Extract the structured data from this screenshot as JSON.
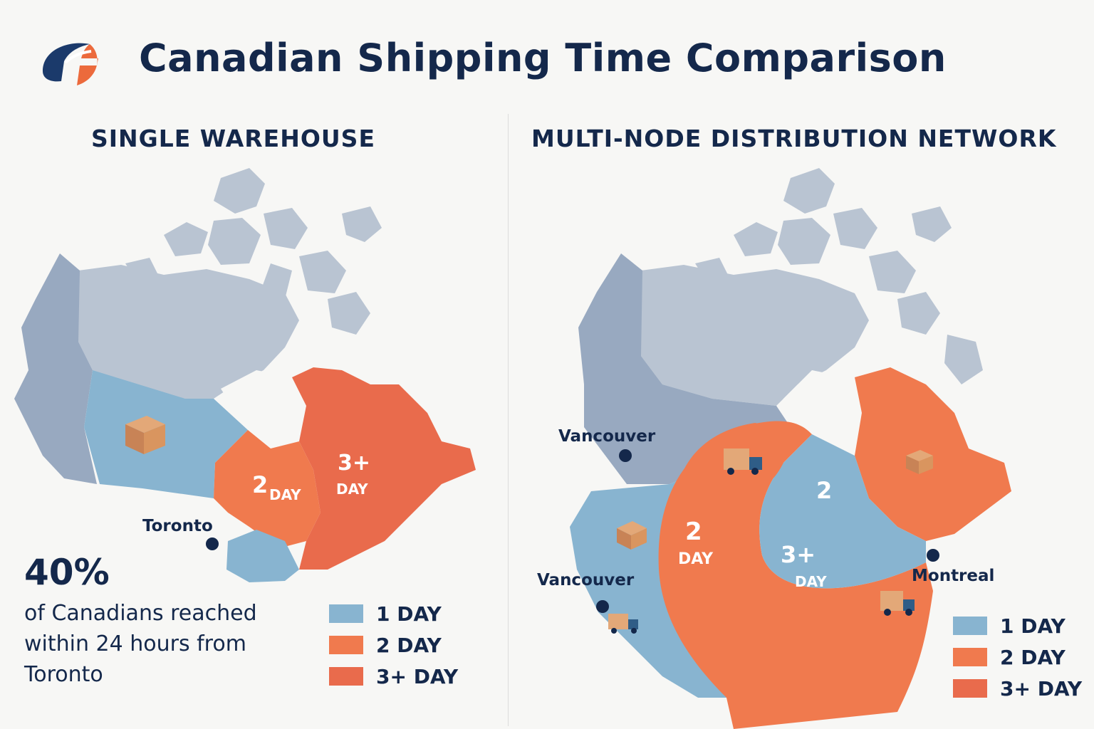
{
  "header": {
    "title": "Canadian Shipping Time Comparison",
    "logo_icon": "brand-logo-icon"
  },
  "colors": {
    "navy": "#14284b",
    "one_day": "#88b4d0",
    "two_day": "#f07a4e",
    "three_day": "#e96b4c",
    "north": "#b9c4d2",
    "west": "#98a9c0"
  },
  "left_panel": {
    "heading": "SINGLE WAREHOUSE",
    "city": "Toronto",
    "zone_labels": {
      "two_num": "2",
      "two_unit": "DAY",
      "three_num": "3+",
      "three_unit": "DAY"
    },
    "stat": {
      "value": "40%",
      "line1": "of Canadians reached",
      "line2": "within 24 hours from",
      "line3": "Toronto"
    },
    "legend": [
      {
        "label": "1 DAY",
        "color": "#88b4d0"
      },
      {
        "label": "2 DAY",
        "color": "#f07a4e"
      },
      {
        "label": "3+ DAY",
        "color": "#e96b4c"
      }
    ]
  },
  "right_panel": {
    "heading": "MULTI-NODE DISTRIBUTION NETWORK",
    "cities": {
      "vancouver_north": "Vancouver",
      "vancouver_south": "Vancouver",
      "montreal": "Montreal"
    },
    "zone_labels": {
      "center_two": "2",
      "ring_two_num": "2",
      "ring_two_unit": "DAY",
      "three_num": "3+",
      "three_unit": "DAY"
    },
    "legend": [
      {
        "label": "1 DAY",
        "color": "#88b4d0"
      },
      {
        "label": "2 DAY",
        "color": "#f07a4e"
      },
      {
        "label": "3+ DAY",
        "color": "#e96b4c"
      }
    ]
  }
}
